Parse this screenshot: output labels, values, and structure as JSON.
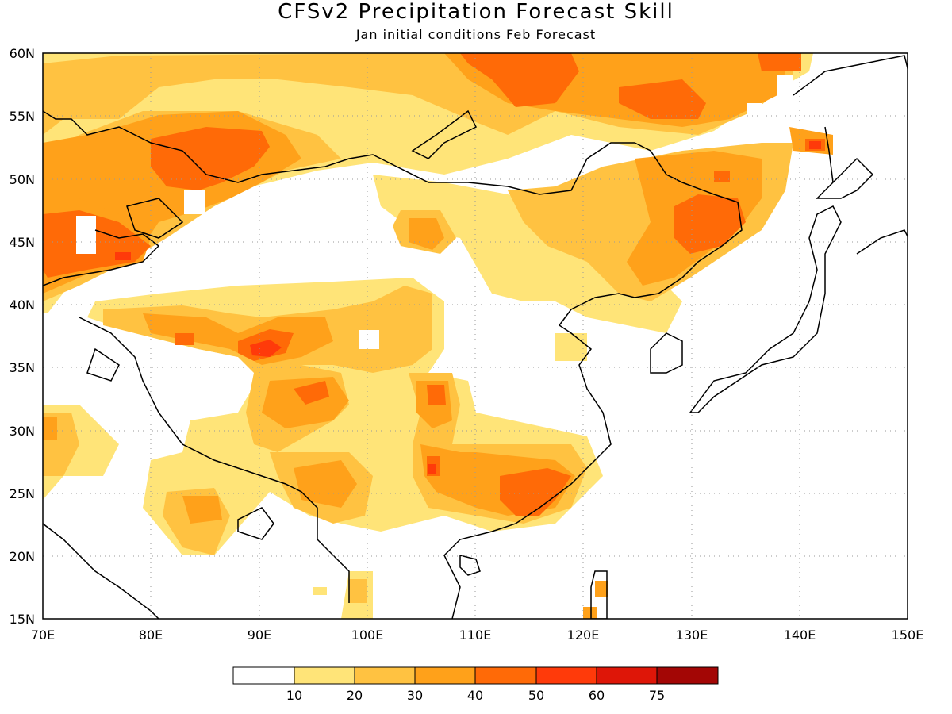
{
  "title": "CFSv2 Precipitation Forecast Skill",
  "subtitle": "Jan initial conditions  Feb Forecast",
  "map": {
    "lon_range": [
      70,
      150
    ],
    "lat_range": [
      15,
      60
    ],
    "lon_ticks": [
      "70E",
      "80E",
      "90E",
      "100E",
      "110E",
      "120E",
      "130E",
      "140E",
      "150E"
    ],
    "lat_ticks": [
      "60N",
      "55N",
      "50N",
      "45N",
      "40N",
      "35N",
      "30N",
      "25N",
      "20N",
      "15N"
    ],
    "gridlines": true,
    "coastlines": true
  },
  "legend": {
    "labels": [
      "10",
      "20",
      "30",
      "40",
      "50",
      "60",
      "75"
    ],
    "colors": [
      "#ffffff",
      "#ffe478",
      "#ffc241",
      "#ffa11a",
      "#ff6a07",
      "#ff3a0a",
      "#de1608",
      "#a30605"
    ]
  }
}
